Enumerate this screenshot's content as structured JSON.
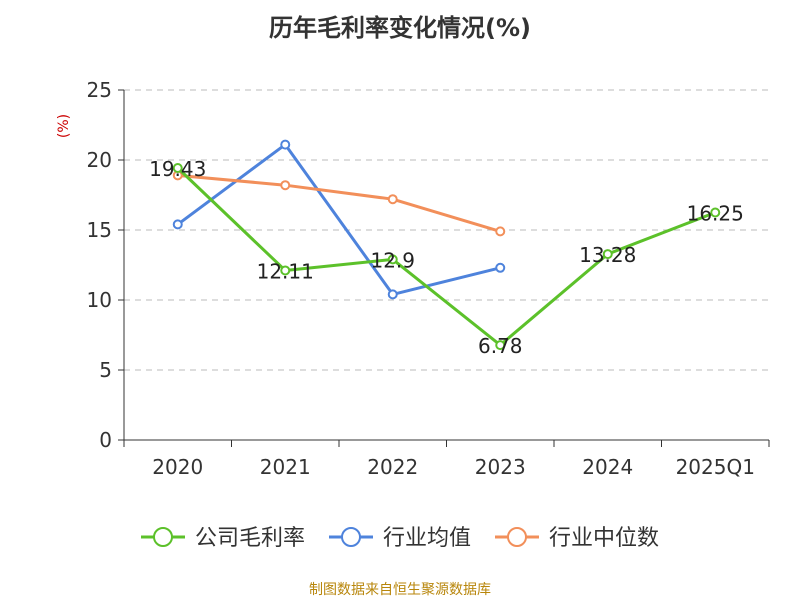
{
  "title": "历年毛利率变化情况(%)",
  "source": "制图数据来自恒生聚源数据库",
  "chart_data": {
    "type": "line",
    "title": "历年毛利率变化情况(%)",
    "yunit": "(%)",
    "categories": [
      "2020",
      "2021",
      "2022",
      "2023",
      "2024",
      "2025Q1"
    ],
    "ylim": [
      0,
      25
    ],
    "yticks": [
      0,
      5,
      10,
      15,
      20,
      25
    ],
    "grid": true,
    "legend_position": "bottom",
    "series": [
      {
        "name": "公司毛利率",
        "color": "#5cc12a",
        "values": [
          19.43,
          12.11,
          12.9,
          6.78,
          13.28,
          16.25
        ],
        "labels": [
          "19.43",
          "12.11",
          "12.9",
          "6.78",
          "13.28",
          "16.25"
        ]
      },
      {
        "name": "行业均值",
        "color": "#4e83dc",
        "values": [
          15.4,
          21.1,
          10.4,
          12.3,
          null,
          null
        ]
      },
      {
        "name": "行业中位数",
        "color": "#f28f5a",
        "values": [
          18.9,
          18.2,
          17.2,
          14.9,
          null,
          null
        ]
      }
    ],
    "unit_color": "#cc0000"
  }
}
